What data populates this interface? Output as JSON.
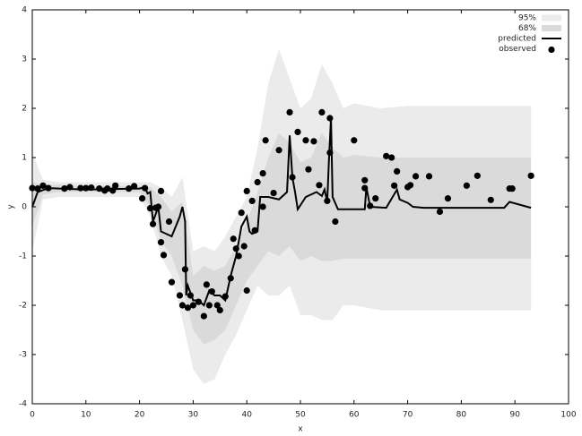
{
  "chart_data": {
    "type": "line",
    "x_label": "x",
    "y_label": "y",
    "xlim": [
      0,
      100
    ],
    "ylim": [
      -4,
      4
    ],
    "xticks": [
      0,
      10,
      20,
      30,
      40,
      50,
      60,
      70,
      80,
      90,
      100
    ],
    "yticks": [
      -4,
      -3,
      -2,
      -1,
      0,
      1,
      2,
      3,
      4
    ],
    "legend": "upper right",
    "bands": [
      {
        "name": "95%",
        "color": "#ebebeb",
        "x": [
          0,
          2,
          5,
          10,
          15,
          20,
          22,
          24,
          26,
          28,
          30,
          32,
          34,
          36,
          38,
          40,
          42,
          44,
          46,
          48,
          50,
          52,
          54,
          56,
          58,
          60,
          65,
          70,
          75,
          80,
          85,
          90,
          93
        ],
        "upper": [
          1.1,
          0.55,
          0.5,
          0.5,
          0.5,
          0.5,
          0.5,
          0.4,
          0.2,
          0.6,
          -0.9,
          -0.8,
          -0.9,
          -0.6,
          -0.2,
          0.2,
          1.2,
          2.5,
          3.2,
          2.6,
          2.0,
          2.2,
          2.9,
          2.5,
          2.0,
          2.1,
          2.0,
          2.05,
          2.05,
          2.05,
          2.05,
          2.05,
          2.05
        ],
        "lower": [
          -0.9,
          0.15,
          0.2,
          0.2,
          0.2,
          0.2,
          -0.2,
          -1.0,
          -1.4,
          -2.3,
          -3.3,
          -3.6,
          -3.5,
          -3.0,
          -2.6,
          -2.1,
          -1.6,
          -1.8,
          -1.8,
          -1.6,
          -2.2,
          -2.2,
          -2.3,
          -2.3,
          -2.0,
          -2.0,
          -2.1,
          -2.1,
          -2.1,
          -2.1,
          -2.1,
          -2.1,
          -2.1
        ]
      },
      {
        "name": "68%",
        "color": "#dadada",
        "x": [
          0,
          2,
          5,
          10,
          15,
          20,
          22,
          24,
          26,
          28,
          30,
          32,
          34,
          36,
          38,
          40,
          42,
          44,
          46,
          48,
          50,
          52,
          54,
          56,
          58,
          60,
          65,
          70,
          75,
          80,
          85,
          90,
          93
        ],
        "upper": [
          0.5,
          0.45,
          0.45,
          0.42,
          0.42,
          0.42,
          0.4,
          0.2,
          -0.1,
          0.1,
          -1.4,
          -1.2,
          -1.3,
          -1.2,
          -0.8,
          -0.3,
          0.3,
          1.0,
          1.5,
          1.3,
          0.9,
          1.0,
          1.5,
          1.2,
          1.0,
          1.05,
          1.0,
          1.0,
          1.0,
          1.0,
          1.0,
          1.0,
          1.0
        ],
        "lower": [
          -0.4,
          0.25,
          0.3,
          0.3,
          0.3,
          0.3,
          0.0,
          -0.7,
          -1.0,
          -1.6,
          -2.5,
          -2.8,
          -2.7,
          -2.5,
          -2.0,
          -1.5,
          -1.2,
          -0.9,
          -1.0,
          -0.8,
          -1.1,
          -1.0,
          -1.1,
          -1.1,
          -1.05,
          -1.05,
          -1.05,
          -1.05,
          -1.05,
          -1.05,
          -1.05,
          -1.05,
          -1.05
        ]
      }
    ],
    "series": [
      {
        "name": "predicted",
        "type": "line",
        "color": "#000000",
        "x": [
          0,
          1,
          3,
          5,
          10,
          20,
          21,
          21.5,
          22,
          22.5,
          23.5,
          24,
          26,
          27.5,
          28,
          28.5,
          28.7,
          29,
          30,
          31,
          32,
          33,
          34,
          35,
          36,
          37,
          38,
          39,
          40,
          40.5,
          41,
          42,
          42.5,
          44,
          46,
          47.5,
          48,
          48.5,
          49,
          49.5,
          51,
          52,
          53,
          54,
          54.5,
          55,
          55.3,
          55.7,
          56,
          57,
          60,
          62,
          62.3,
          63,
          66,
          68,
          68.5,
          70,
          71,
          73,
          80,
          88,
          89,
          93
        ],
        "values": [
          0,
          0.3,
          0.38,
          0.37,
          0.35,
          0.37,
          0.4,
          0.27,
          0.3,
          -0.3,
          0,
          -0.5,
          -0.6,
          -0.2,
          0,
          -0.3,
          -1.8,
          -1.6,
          -1.9,
          -1.9,
          -2.0,
          -1.7,
          -1.8,
          -1.8,
          -1.9,
          -1.4,
          -1.0,
          -0.4,
          -0.2,
          -0.5,
          -0.55,
          -0.5,
          0.2,
          0.2,
          0.15,
          0.3,
          1.45,
          0.6,
          0.3,
          -0.05,
          0.2,
          0.25,
          0.3,
          0.22,
          0.35,
          0.1,
          0.9,
          1.8,
          0.2,
          -0.05,
          -0.05,
          -0.05,
          0.4,
          0,
          -0.02,
          0.35,
          0.15,
          0.08,
          0,
          -0.02,
          -0.02,
          -0.02,
          0.1,
          -0.02
        ]
      },
      {
        "name": "observed",
        "type": "scatter",
        "color": "#000000",
        "x": [
          0,
          1,
          2,
          3,
          6,
          7,
          9,
          10,
          11,
          12.5,
          13.5,
          14,
          15,
          15.5,
          18,
          19,
          20.5,
          21,
          22,
          22.5,
          23,
          23.5,
          24,
          24,
          24.5,
          25.5,
          26,
          27.5,
          28,
          28.5,
          29,
          29.5,
          30,
          31,
          32,
          32.5,
          33,
          33.5,
          34.5,
          35,
          36,
          37,
          37.5,
          38,
          38.5,
          39,
          39.5,
          40,
          40,
          41,
          41.5,
          42,
          43,
          43,
          43.5,
          45,
          46,
          48,
          48.5,
          49.5,
          51,
          51.5,
          52.5,
          53.5,
          54,
          55,
          55.5,
          55.5,
          56.5,
          60,
          62,
          62,
          63,
          64,
          66,
          67,
          67.5,
          68,
          70,
          70.5,
          71.5,
          74,
          76,
          77.5,
          81,
          83,
          85.5,
          89,
          89.5,
          93
        ],
        "values": [
          0.38,
          0.37,
          0.43,
          0.38,
          0.37,
          0.4,
          0.38,
          0.38,
          0.39,
          0.37,
          0.33,
          0.37,
          0.33,
          0.43,
          0.37,
          0.42,
          0.17,
          0.38,
          -0.03,
          -0.35,
          -0.02,
          0.0,
          0.32,
          -0.72,
          -0.98,
          -0.3,
          -1.53,
          -1.8,
          -2.0,
          -1.27,
          -2.05,
          -1.8,
          -2.0,
          -1.93,
          -2.22,
          -1.58,
          -2.0,
          -1.72,
          -2.0,
          -2.1,
          -1.82,
          -1.45,
          -0.65,
          -0.85,
          -1.0,
          -0.12,
          -0.8,
          0.32,
          -1.7,
          0.12,
          -0.48,
          0.5,
          0.0,
          0.68,
          1.35,
          0.28,
          1.15,
          1.92,
          0.6,
          1.52,
          1.35,
          0.76,
          1.33,
          0.44,
          1.92,
          0.12,
          1.8,
          1.1,
          -0.3,
          1.35,
          0.54,
          0.38,
          0.02,
          0.17,
          1.03,
          1.0,
          0.43,
          0.72,
          0.4,
          0.44,
          0.62,
          0.62,
          -0.1,
          0.17,
          0.43,
          0.63,
          0.14,
          0.37,
          0.37,
          0.63
        ]
      }
    ]
  }
}
